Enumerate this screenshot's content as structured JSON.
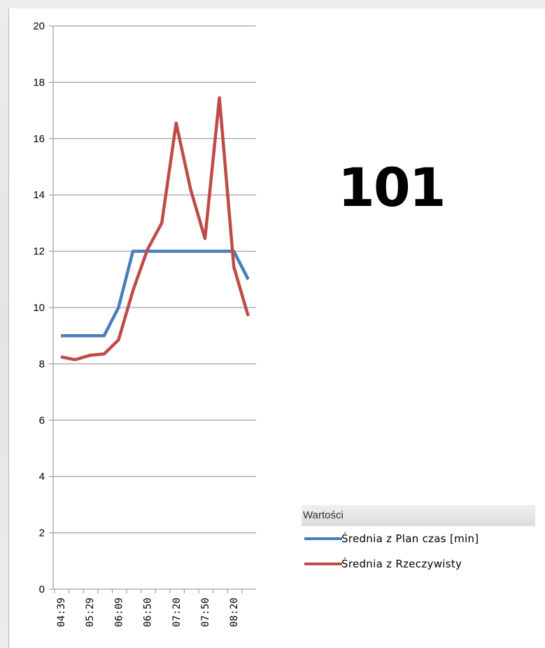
{
  "kpi": {
    "value": "101"
  },
  "legend": {
    "title": "Wartości",
    "items": [
      {
        "label": "Średnia z Plan czas [min]",
        "color": "#4a7ebb"
      },
      {
        "label": "Średnia z Rzeczywisty",
        "color": "#be4b48"
      }
    ]
  },
  "chart_data": {
    "type": "line",
    "title": "",
    "xlabel": "",
    "ylabel": "",
    "ylim": [
      0,
      20
    ],
    "yticks": [
      "0",
      "2",
      "4",
      "6",
      "8",
      "10",
      "12",
      "14",
      "16",
      "18",
      "20"
    ],
    "x_tick_labels": [
      "04:39",
      "05:29",
      "06:09",
      "06:50",
      "07:20",
      "07:50",
      "08:20"
    ],
    "grid": true,
    "legend_position": "bottom-right",
    "series": [
      {
        "name": "Średnia z Plan czas [min]",
        "color": "#4a7ebb",
        "values": [
          9,
          9,
          9,
          9,
          10,
          12,
          12,
          12,
          12,
          12,
          12,
          12,
          12,
          11
        ]
      },
      {
        "name": "Średnia z Rzeczywisty",
        "color": "#be4b48",
        "values": [
          8.25,
          8.15,
          8.3,
          8.35,
          8.85,
          10.6,
          12.05,
          13,
          16.55,
          14.2,
          12.45,
          17.45,
          11.45,
          9.7
        ]
      }
    ]
  }
}
